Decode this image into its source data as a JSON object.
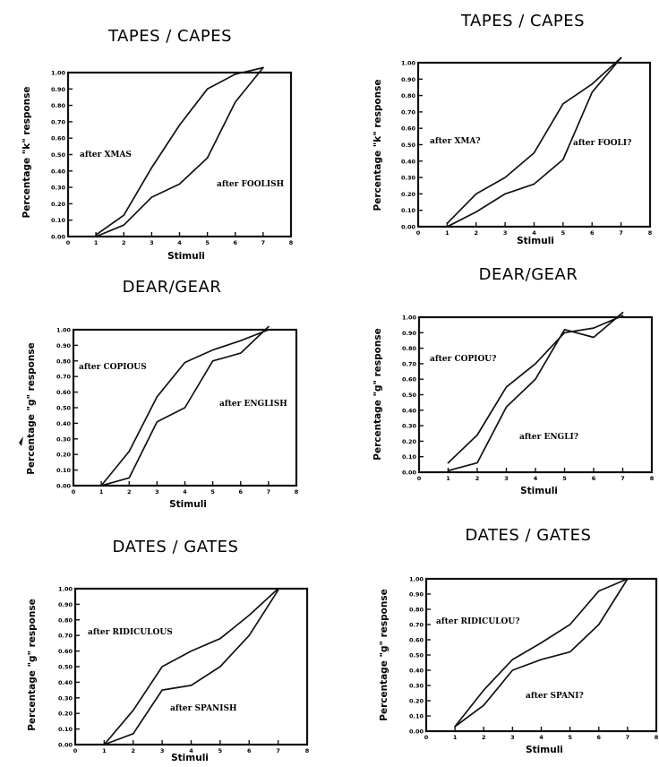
{
  "chart_data": [
    {
      "type": "line",
      "title": "TAPES / CAPES",
      "xlabel": "Stimuli",
      "ylabel": "Percentage \"k\" response",
      "xlim": [
        0,
        8
      ],
      "ylim": [
        0,
        1
      ],
      "xticks": [
        "0",
        "1",
        "2",
        "3",
        "4",
        "5",
        "6",
        "7",
        "8"
      ],
      "yticks": [
        "0.00",
        "0.10",
        "0.20",
        "0.30",
        "0.40",
        "0.50",
        "0.60",
        "0.70",
        "0.80",
        "0.90",
        "1.00"
      ],
      "grid": false,
      "series": [
        {
          "name": "after XMAS",
          "x": [
            1,
            2,
            3,
            4,
            5,
            6,
            7
          ],
          "values": [
            0.01,
            0.13,
            0.42,
            0.68,
            0.9,
            0.99,
            1.03
          ]
        },
        {
          "name": "after FOOLISH",
          "x": [
            1,
            2,
            3,
            4,
            5,
            6,
            7
          ],
          "values": [
            0.0,
            0.07,
            0.24,
            0.32,
            0.48,
            0.82,
            1.03
          ]
        }
      ]
    },
    {
      "type": "line",
      "title": "TAPES / CAPES",
      "xlabel": "Stimuli",
      "ylabel": "Percentage \"k\" response",
      "xlim": [
        0,
        8
      ],
      "ylim": [
        0,
        1
      ],
      "xticks": [
        "0",
        "1",
        "2",
        "3",
        "4",
        "5",
        "6",
        "7",
        "8"
      ],
      "yticks": [
        "0.00",
        "0.10",
        "0.20",
        "0.30",
        "0.40",
        "0.50",
        "0.60",
        "0.70",
        "0.80",
        "0.90",
        "1.00"
      ],
      "grid": false,
      "series": [
        {
          "name": "after XMA?",
          "x": [
            1,
            2,
            3,
            4,
            5,
            6,
            7
          ],
          "values": [
            0.02,
            0.2,
            0.3,
            0.45,
            0.75,
            0.87,
            1.03
          ]
        },
        {
          "name": "after FOOLI?",
          "x": [
            1,
            2,
            3,
            4,
            5,
            6,
            7
          ],
          "values": [
            0.0,
            0.09,
            0.2,
            0.26,
            0.41,
            0.82,
            1.03
          ]
        }
      ]
    },
    {
      "type": "line",
      "title": "DEAR/GEAR",
      "xlabel": "Stimuli",
      "ylabel": "Percentage \"g\" response",
      "xlim": [
        0,
        8
      ],
      "ylim": [
        0,
        1
      ],
      "xticks": [
        "0",
        "1",
        "2",
        "3",
        "4",
        "5",
        "6",
        "7",
        "8"
      ],
      "yticks": [
        "0.00",
        "0.10",
        "0.20",
        "0.30",
        "0.40",
        "0.50",
        "0.60",
        "0.70",
        "0.80",
        "0.90",
        "1.00"
      ],
      "grid": false,
      "series": [
        {
          "name": "after COPIOUS",
          "x": [
            1,
            2,
            3,
            4,
            5,
            6,
            7
          ],
          "values": [
            0.0,
            0.22,
            0.57,
            0.79,
            0.87,
            0.93,
            1.0
          ]
        },
        {
          "name": "after ENGLISH",
          "x": [
            1,
            2,
            3,
            4,
            5,
            6,
            7
          ],
          "values": [
            0.0,
            0.05,
            0.41,
            0.5,
            0.8,
            0.85,
            1.02
          ]
        }
      ]
    },
    {
      "type": "line",
      "title": "DEAR/GEAR",
      "xlabel": "Stimuli",
      "ylabel": "Percentage \"g\" response",
      "xlim": [
        0,
        8
      ],
      "ylim": [
        0,
        1
      ],
      "xticks": [
        "0",
        "1",
        "2",
        "3",
        "4",
        "5",
        "6",
        "7",
        "8"
      ],
      "yticks": [
        "0.00",
        "0.10",
        "0.20",
        "0.30",
        "0.40",
        "0.50",
        "0.60",
        "0.70",
        "0.80",
        "0.90",
        "1.00"
      ],
      "grid": false,
      "series": [
        {
          "name": "after COPIOU?",
          "x": [
            1,
            2,
            3,
            4,
            5,
            6,
            7
          ],
          "values": [
            0.06,
            0.24,
            0.55,
            0.7,
            0.9,
            0.93,
            1.01
          ]
        },
        {
          "name": "after ENGLI?",
          "x": [
            1,
            2,
            3,
            4,
            5,
            6,
            7
          ],
          "values": [
            0.01,
            0.06,
            0.42,
            0.6,
            0.92,
            0.87,
            1.03
          ]
        }
      ]
    },
    {
      "type": "line",
      "title": "DATES / GATES",
      "xlabel": "Stimuli",
      "ylabel": "Percentage \"g\" response",
      "xlim": [
        0,
        8
      ],
      "ylim": [
        0,
        1
      ],
      "xticks": [
        "0",
        "1",
        "2",
        "3",
        "4",
        "5",
        "6",
        "7",
        "8"
      ],
      "yticks": [
        "0.00",
        "0.10",
        "0.20",
        "0.30",
        "0.40",
        "0.50",
        "0.60",
        "0.70",
        "0.80",
        "0.90",
        "1.00"
      ],
      "grid": false,
      "series": [
        {
          "name": "after RIDICULOUS",
          "x": [
            1,
            2,
            3,
            4,
            5,
            6,
            7
          ],
          "values": [
            0.0,
            0.22,
            0.5,
            0.6,
            0.68,
            0.83,
            1.0
          ]
        },
        {
          "name": "after SPANISH",
          "x": [
            1,
            2,
            3,
            4,
            5,
            6,
            7
          ],
          "values": [
            0.0,
            0.07,
            0.35,
            0.38,
            0.5,
            0.7,
            0.99
          ]
        }
      ]
    },
    {
      "type": "line",
      "title": "DATES / GATES",
      "xlabel": "Stimuli",
      "ylabel": "Percentage \"g\" response",
      "xlim": [
        0,
        8
      ],
      "ylim": [
        0,
        1
      ],
      "xticks": [
        "0",
        "1",
        "2",
        "3",
        "4",
        "5",
        "6",
        "7",
        "8"
      ],
      "yticks": [
        "0.00",
        "0.10",
        "0.20",
        "0.30",
        "0.40",
        "0.50",
        "0.60",
        "0.70",
        "0.80",
        "0.90",
        "1.00"
      ],
      "grid": false,
      "series": [
        {
          "name": "after RIDICULOU?",
          "x": [
            1,
            2,
            3,
            4,
            5,
            6,
            7
          ],
          "values": [
            0.03,
            0.27,
            0.47,
            0.58,
            0.7,
            0.92,
            1.0
          ]
        },
        {
          "name": "after SPANI?",
          "x": [
            1,
            2,
            3,
            4,
            5,
            6,
            7
          ],
          "values": [
            0.03,
            0.17,
            0.4,
            0.47,
            0.52,
            0.7,
            1.0
          ]
        }
      ]
    }
  ]
}
